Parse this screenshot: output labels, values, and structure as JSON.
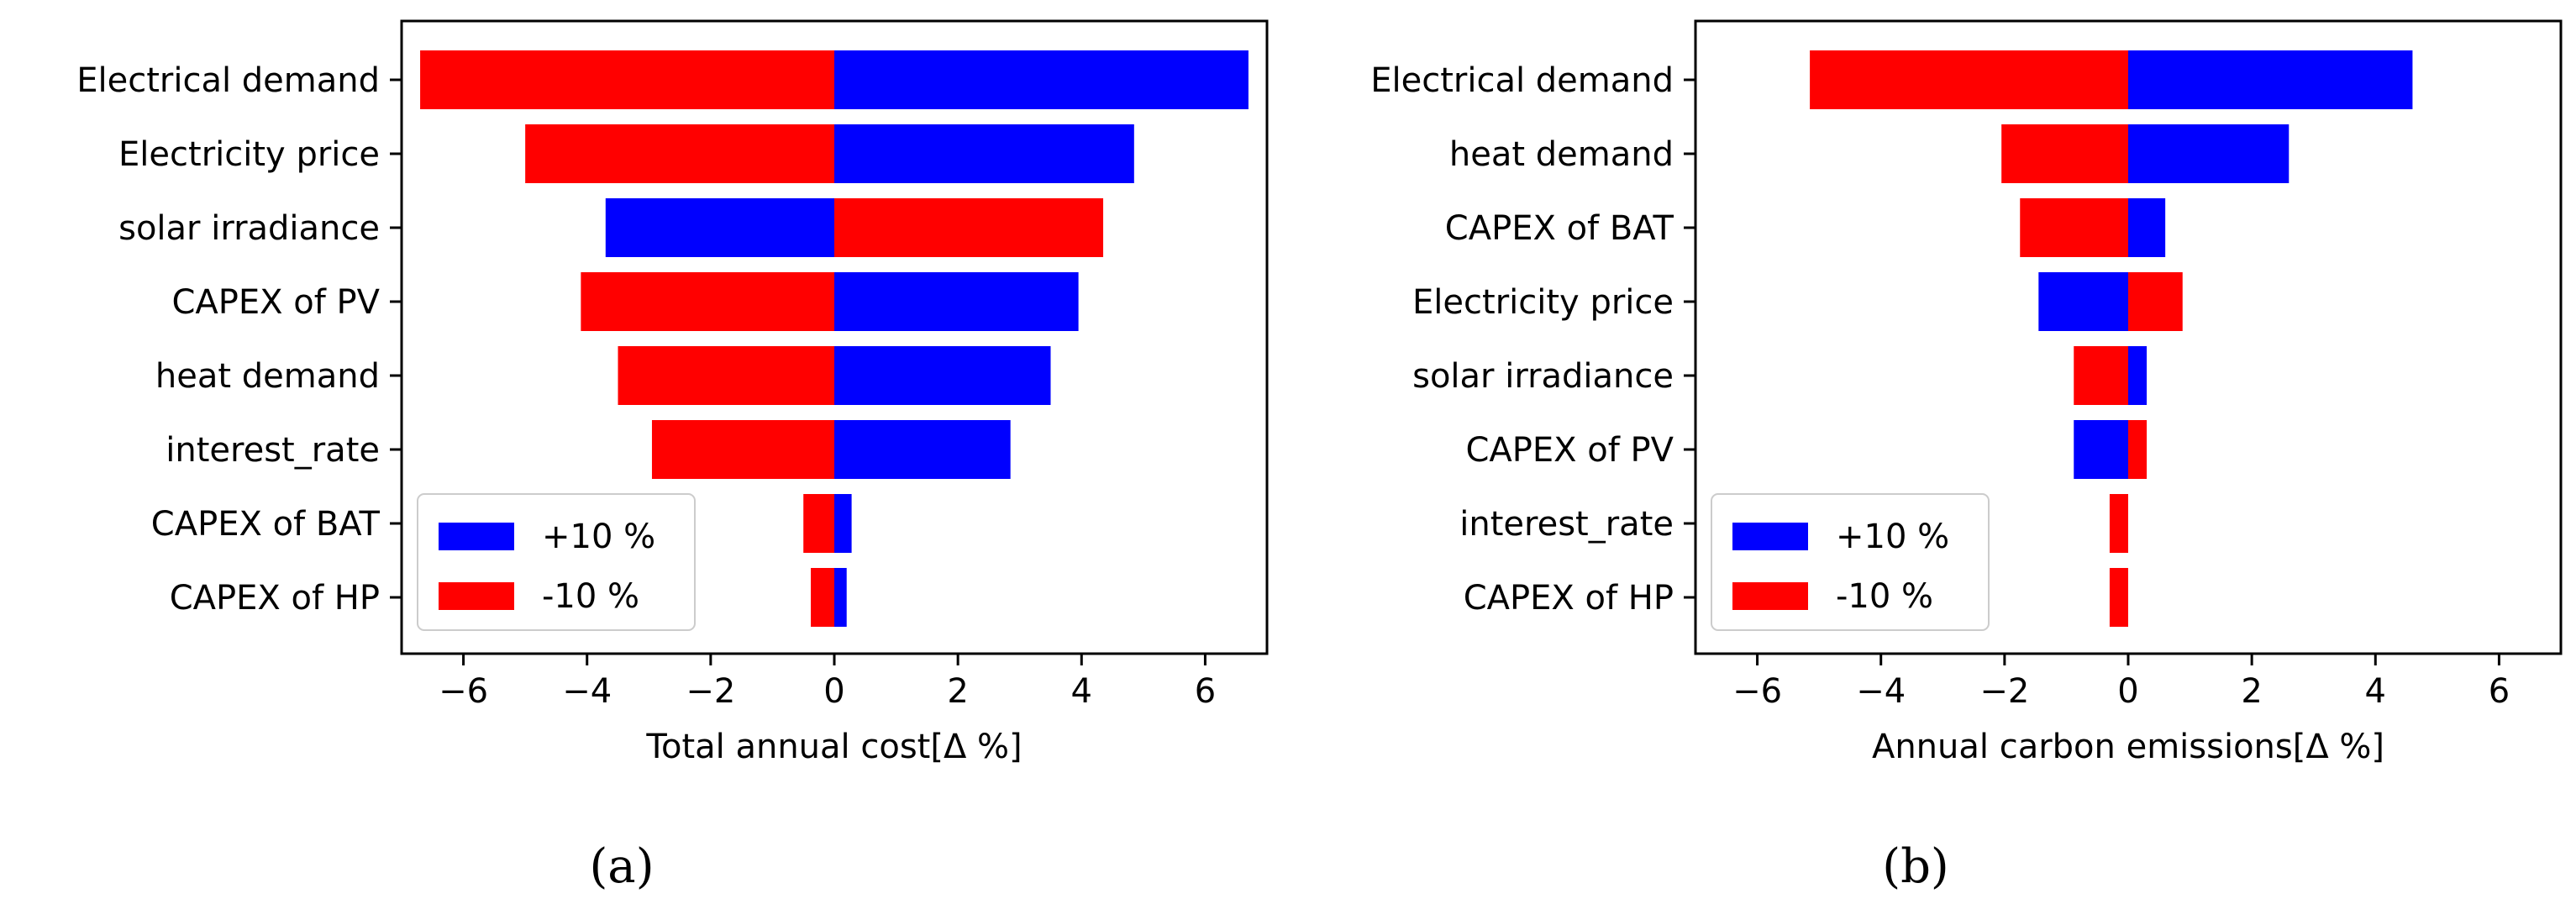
{
  "chart_data": [
    {
      "type": "bar",
      "orientation": "horizontal",
      "panel_label": "(a)",
      "categories": [
        "Electrical demand",
        "Electricity price",
        "solar irradiance",
        "CAPEX of PV",
        "heat demand",
        "interest_rate",
        "CAPEX of BAT",
        "CAPEX of HP"
      ],
      "series": [
        {
          "name": "+10 %",
          "color": "#0000ff",
          "values": [
            6.7,
            4.85,
            -3.7,
            3.95,
            3.5,
            2.85,
            0.28,
            0.2
          ]
        },
        {
          "name": "-10 %",
          "color": "#ff0000",
          "values": [
            -6.7,
            -5.0,
            4.35,
            -4.1,
            -3.5,
            -2.95,
            -0.5,
            -0.38
          ]
        }
      ],
      "xlabel": "Total annual cost[Δ %]",
      "xlim": [
        -7,
        7
      ],
      "xticks": [
        -6,
        -4,
        -2,
        0,
        2,
        4,
        6
      ],
      "xtick_labels": [
        "−6",
        "−4",
        "−2",
        "0",
        "2",
        "4",
        "6"
      ],
      "legend_position": "lower-left"
    },
    {
      "type": "bar",
      "orientation": "horizontal",
      "panel_label": "(b)",
      "categories": [
        "Electrical demand",
        "heat demand",
        "CAPEX of BAT",
        "Electricity price",
        "solar irradiance",
        "CAPEX of PV",
        "interest_rate",
        "CAPEX of HP"
      ],
      "series": [
        {
          "name": "+10 %",
          "color": "#0000ff",
          "values": [
            4.6,
            2.6,
            0.6,
            -1.45,
            0.3,
            -0.88,
            0.0,
            0.0
          ]
        },
        {
          "name": "-10 %",
          "color": "#ff0000",
          "values": [
            -5.15,
            -2.05,
            -1.75,
            0.88,
            -0.88,
            0.3,
            -0.3,
            -0.3
          ]
        }
      ],
      "xlabel": "Annual carbon emissions[Δ %]",
      "xlim": [
        -7,
        7
      ],
      "xticks": [
        -6,
        -4,
        -2,
        0,
        2,
        4,
        6
      ],
      "xtick_labels": [
        "−6",
        "−4",
        "−2",
        "0",
        "2",
        "4",
        "6"
      ],
      "legend_position": "lower-left"
    }
  ]
}
